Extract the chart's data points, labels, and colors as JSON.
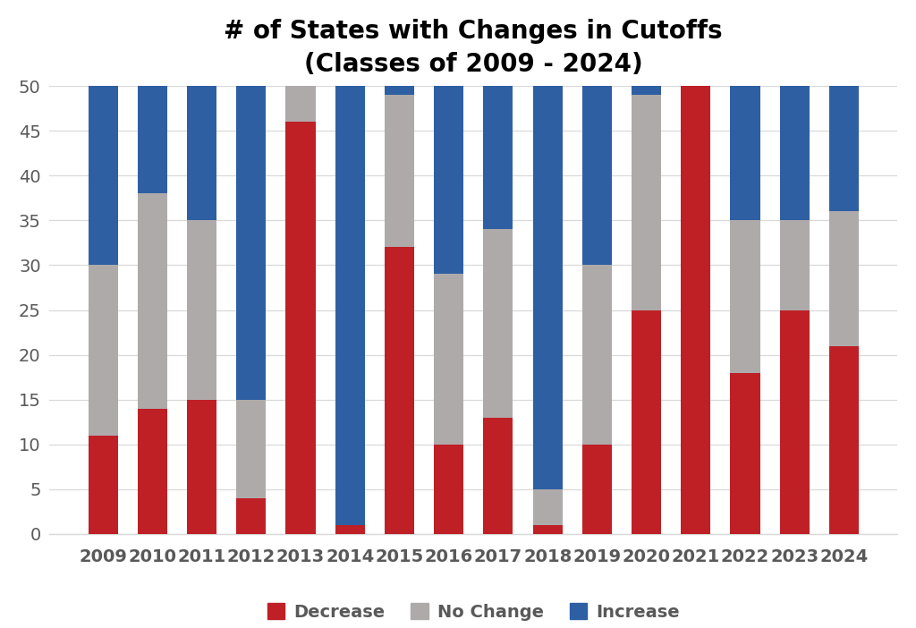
{
  "years": [
    2009,
    2010,
    2011,
    2012,
    2013,
    2014,
    2015,
    2016,
    2017,
    2018,
    2019,
    2020,
    2021,
    2022,
    2023,
    2024
  ],
  "decrease": [
    11,
    14,
    15,
    4,
    46,
    1,
    32,
    10,
    13,
    1,
    10,
    25,
    50,
    18,
    25,
    21
  ],
  "no_change": [
    19,
    24,
    20,
    11,
    4,
    0,
    17,
    19,
    21,
    4,
    20,
    24,
    0,
    17,
    10,
    15
  ],
  "increase": [
    20,
    12,
    15,
    35,
    0,
    49,
    1,
    21,
    16,
    45,
    20,
    1,
    0,
    15,
    15,
    14
  ],
  "colors": {
    "decrease": "#BE2026",
    "no_change": "#AEAAAA",
    "increase": "#2E5FA3"
  },
  "title_line1": "# of States with Changes in Cutoffs",
  "title_line2": "(Classes of 2009 - 2024)",
  "ylim": [
    0,
    50
  ],
  "yticks": [
    0,
    5,
    10,
    15,
    20,
    25,
    30,
    35,
    40,
    45,
    50
  ],
  "legend_labels": [
    "Decrease",
    "No Change",
    "Increase"
  ],
  "background_color": "#FFFFFF",
  "bar_width": 0.6,
  "title_fontsize": 20,
  "tick_fontsize": 14,
  "legend_fontsize": 14,
  "text_color": "#595959",
  "grid_color": "#D9D9D9",
  "spine_color": "#D9D9D9"
}
